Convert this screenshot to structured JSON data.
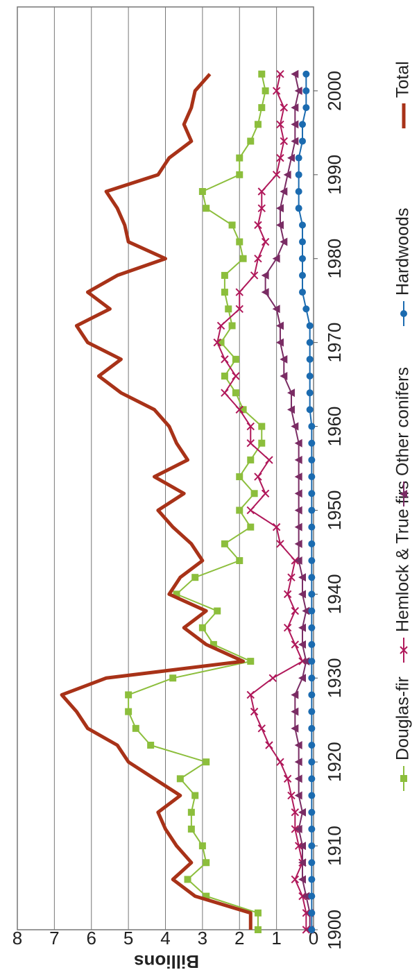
{
  "chart_data": {
    "type": "line",
    "y_label": "Billions",
    "x": [
      1900,
      1902,
      1904,
      1906,
      1908,
      1910,
      1912,
      1914,
      1916,
      1918,
      1920,
      1922,
      1924,
      1926,
      1928,
      1930,
      1932,
      1934,
      1936,
      1938,
      1940,
      1942,
      1944,
      1946,
      1948,
      1950,
      1952,
      1954,
      1956,
      1958,
      1960,
      1962,
      1964,
      1966,
      1968,
      1970,
      1972,
      1974,
      1976,
      1978,
      1980,
      1982,
      1984,
      1986,
      1988,
      1990,
      1992,
      1994,
      1996,
      1998,
      2000,
      2002
    ],
    "xlim": [
      1900,
      2010
    ],
    "xticks": [
      1900,
      1910,
      1920,
      1930,
      1940,
      1950,
      1960,
      1970,
      1980,
      1990,
      2000
    ],
    "ylim": [
      0,
      8
    ],
    "yticks": [
      0,
      1,
      2,
      3,
      4,
      5,
      6,
      7,
      8
    ],
    "grid": true,
    "series": [
      {
        "name": "Douglas-fir",
        "color": "#8cbe3c",
        "marker": "square",
        "values": [
          1.5,
          1.5,
          2.9,
          3.4,
          2.9,
          3.0,
          3.3,
          3.3,
          3.2,
          3.6,
          2.9,
          4.4,
          4.8,
          5.0,
          5.0,
          3.8,
          1.7,
          2.7,
          3.0,
          2.6,
          3.7,
          3.2,
          2.0,
          2.4,
          1.7,
          2.0,
          1.6,
          2.0,
          1.7,
          1.4,
          1.4,
          1.9,
          2.1,
          2.4,
          2.1,
          2.5,
          2.2,
          2.3,
          2.4,
          2.4,
          1.9,
          2.0,
          2.2,
          2.9,
          3.0,
          2.0,
          2.0,
          1.7,
          1.5,
          1.4,
          1.3,
          1.4
        ]
      },
      {
        "name": "Hemlock & True firs",
        "color": "#b0185a",
        "marker": "cross",
        "values": [
          0.2,
          0.2,
          0.3,
          0.5,
          0.3,
          0.4,
          0.5,
          0.5,
          0.6,
          0.7,
          0.9,
          1.2,
          1.4,
          1.6,
          1.7,
          1.1,
          0.3,
          0.5,
          0.7,
          0.5,
          0.7,
          0.6,
          0.5,
          0.9,
          1.0,
          1.7,
          1.3,
          1.5,
          1.2,
          1.7,
          1.7,
          2.0,
          2.4,
          2.1,
          2.4,
          2.6,
          2.5,
          2.0,
          2.0,
          1.6,
          1.5,
          1.3,
          1.5,
          1.4,
          1.4,
          1.0,
          0.9,
          0.8,
          0.9,
          0.8,
          1.0,
          0.9
        ]
      },
      {
        "name": "Other conifers",
        "color": "#7a2c64",
        "marker": "triangle",
        "values": [
          0.1,
          0.1,
          0.2,
          0.3,
          0.3,
          0.3,
          0.4,
          0.3,
          0.4,
          0.4,
          0.4,
          0.4,
          0.5,
          0.5,
          0.5,
          0.3,
          0.2,
          0.3,
          0.3,
          0.2,
          0.3,
          0.3,
          0.4,
          0.4,
          0.4,
          0.4,
          0.4,
          0.4,
          0.4,
          0.4,
          0.5,
          0.6,
          0.6,
          0.8,
          0.8,
          0.9,
          0.9,
          1.0,
          1.3,
          1.3,
          1.0,
          0.8,
          0.9,
          0.9,
          0.8,
          0.7,
          0.6,
          0.5,
          0.5,
          0.5,
          0.4,
          0.5
        ]
      },
      {
        "name": "Hardwoods",
        "color": "#1b6bb0",
        "marker": "circle",
        "values": [
          0.05,
          0.05,
          0.05,
          0.05,
          0.05,
          0.05,
          0.05,
          0.05,
          0.05,
          0.05,
          0.05,
          0.05,
          0.05,
          0.05,
          0.05,
          0.05,
          0.05,
          0.05,
          0.05,
          0.05,
          0.05,
          0.05,
          0.05,
          0.05,
          0.05,
          0.05,
          0.05,
          0.05,
          0.05,
          0.05,
          0.05,
          0.1,
          0.1,
          0.1,
          0.1,
          0.1,
          0.1,
          0.2,
          0.3,
          0.3,
          0.3,
          0.3,
          0.3,
          0.4,
          0.4,
          0.4,
          0.4,
          0.3,
          0.3,
          0.2,
          0.2,
          0.2
        ]
      },
      {
        "name": "Total",
        "color": "#a83218",
        "marker": "none",
        "values": [
          1.7,
          1.7,
          3.2,
          3.8,
          3.3,
          3.7,
          4.0,
          4.2,
          3.6,
          4.3,
          5.0,
          5.3,
          6.1,
          6.4,
          6.8,
          5.6,
          1.9,
          2.9,
          3.5,
          2.9,
          3.9,
          3.6,
          3.0,
          3.3,
          3.8,
          4.2,
          3.5,
          4.3,
          3.4,
          3.7,
          3.9,
          4.3,
          5.2,
          5.8,
          5.2,
          6.1,
          6.4,
          5.5,
          6.1,
          5.3,
          4.0,
          5.0,
          5.1,
          5.3,
          5.6,
          4.2,
          3.9,
          3.3,
          3.5,
          3.3,
          3.2,
          2.8
        ]
      }
    ]
  }
}
